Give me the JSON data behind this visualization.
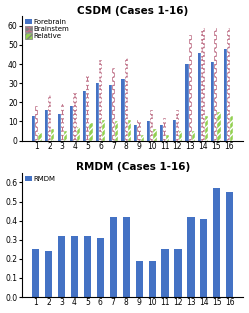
{
  "csdm_title": "CSDM (Cases 1-16)",
  "rmdm_title": "RMDM (Cases 1-16)",
  "cases": [
    1,
    2,
    3,
    4,
    5,
    6,
    7,
    8,
    9,
    10,
    11,
    12,
    13,
    14,
    15,
    16
  ],
  "forebrain": [
    13,
    16,
    14,
    18,
    26,
    30,
    29,
    32,
    8,
    10,
    8,
    11,
    40,
    46,
    41,
    48
  ],
  "brainstem": [
    18,
    24,
    19,
    25,
    35,
    42,
    38,
    43,
    11,
    16,
    12,
    16,
    55,
    59,
    59,
    59
  ],
  "relative": [
    4,
    6,
    5,
    7,
    9,
    11,
    10,
    11,
    3,
    6,
    3,
    5,
    5,
    13,
    15,
    13
  ],
  "rmdm": [
    0.25,
    0.24,
    0.32,
    0.32,
    0.32,
    0.31,
    0.42,
    0.42,
    0.19,
    0.19,
    0.25,
    0.25,
    0.42,
    0.41,
    0.57,
    0.55
  ],
  "forebrain_color": "#4472c4",
  "brainstem_color": "#c0748a",
  "brainstem_dot_color": "#ffffff",
  "relative_color": "#92d050",
  "rmdm_color": "#4472c4",
  "bg_color": "#ffffff",
  "csdm_ylim": [
    0,
    65
  ],
  "csdm_yticks": [
    0,
    10,
    20,
    30,
    40,
    50,
    60
  ],
  "rmdm_ylim": [
    0,
    0.65
  ],
  "rmdm_yticks": [
    0,
    0.1,
    0.2,
    0.3,
    0.4,
    0.5,
    0.6
  ],
  "figsize": [
    2.49,
    3.13
  ],
  "dpi": 100
}
